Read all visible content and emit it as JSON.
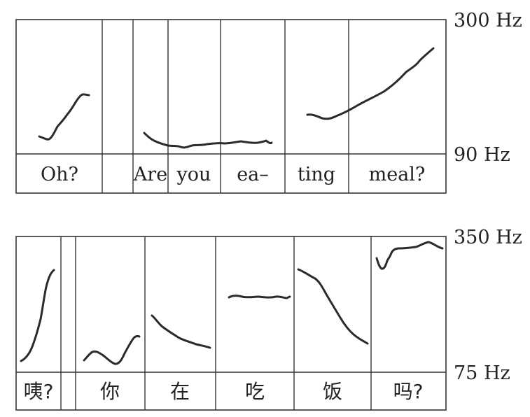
{
  "panels": [
    {
      "id": "english",
      "scale_top": "300 Hz",
      "scale_bottom": "90 Hz",
      "labels": [
        "Oh?",
        "Are",
        "you",
        "ea–",
        "ting",
        "meal?"
      ]
    },
    {
      "id": "chinese",
      "scale_top": "350 Hz",
      "scale_bottom": "75 Hz",
      "labels": [
        "咦?",
        "你",
        "在",
        "吃",
        "饭",
        "吗?"
      ]
    }
  ]
}
